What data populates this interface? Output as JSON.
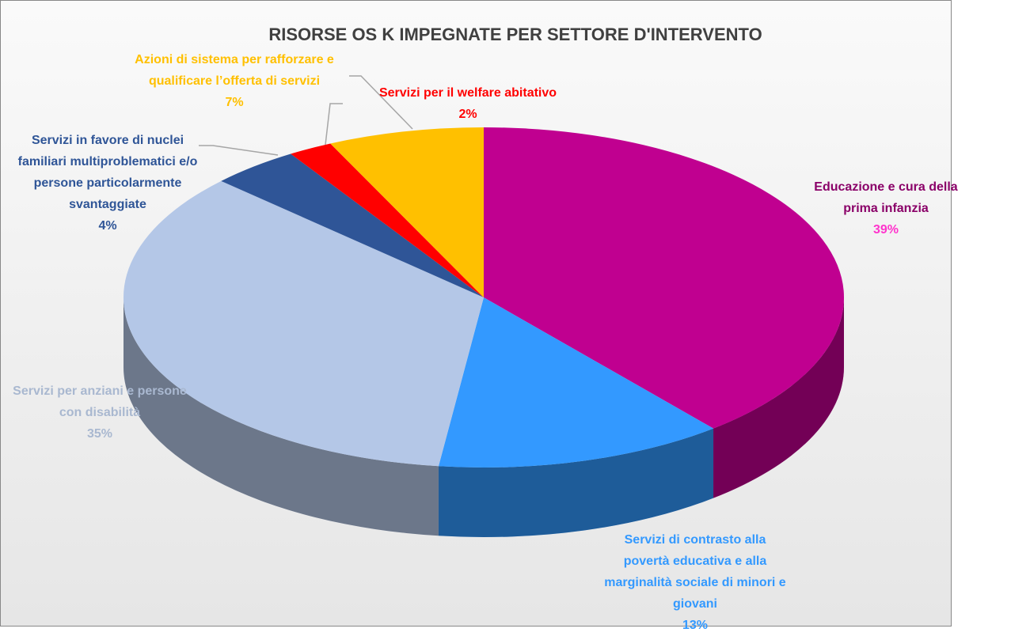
{
  "chart_data": {
    "type": "pie3d",
    "title": "RISORSE OS K  IMPEGNATE PER SETTORE D'INTERVENTO",
    "categories": [
      "Educazione e cura della prima infanzia",
      "Servizi di contrasto alla povertà educativa e alla marginalità sociale di minori e giovani",
      "Servizi per anziani e persone con disabilità",
      "Servizi in favore di nuclei familiari multiproblematici e/o persone particolarmente svantaggiate",
      "Servizi per il welfare abitativo",
      "Azioni di sistema per rafforzare e qualificare l’offerta di servizi"
    ],
    "values": [
      39,
      13,
      35,
      4,
      2,
      7
    ],
    "value_labels": [
      "39%",
      "13%",
      "35%",
      "4%",
      "2%",
      "7%"
    ],
    "colors": [
      "#c00090",
      "#3399ff",
      "#b4c7e7",
      "#2f5597",
      "#ff0000",
      "#ffc000"
    ],
    "label_colors": [
      "#8a0068",
      "#3399ff",
      "#a9b8d0",
      "#2f5597",
      "#ff0000",
      "#ffc000"
    ],
    "value_label_colors": [
      "#ff33cc",
      "#3399ff",
      "#a9b8d0",
      "#2f5597",
      "#ff0000",
      "#ffc000"
    ]
  }
}
